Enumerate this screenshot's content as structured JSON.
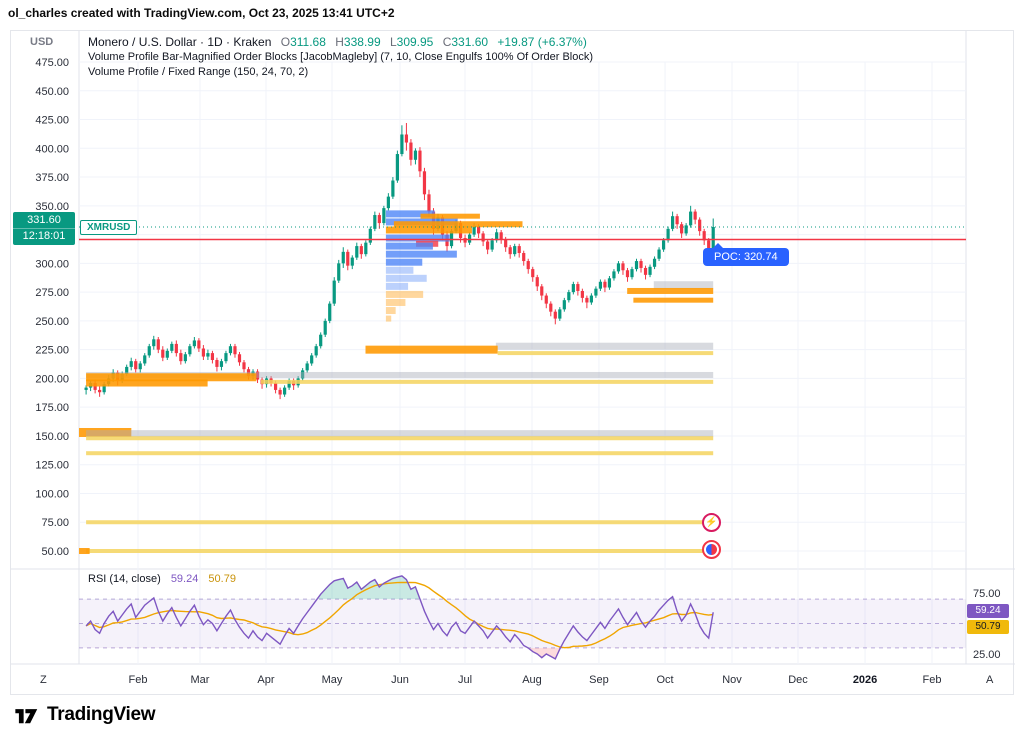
{
  "header": {
    "credit": "ol_charles created with TradingView.com, Oct 23, 2025 13:41 UTC+2"
  },
  "legend": {
    "title": "Monero / U.S. Dollar · 1D · Kraken",
    "o_label": "O",
    "o": "311.68",
    "h_label": "H",
    "h": "338.99",
    "l_label": "L",
    "l": "309.95",
    "c_label": "C",
    "c": "331.60",
    "change": "+19.87 (+6.37%)",
    "indicator1": "Volume Profile Bar-Magnified Order Blocks [JacobMagleby] (7, 10, Close Engulfs 100% Of Order Block)",
    "indicator2": "Volume Profile / Fixed Range (150, 24, 70, 2)"
  },
  "price_axis": {
    "unit": "USD",
    "current": "331.60",
    "countdown": "12:18:01",
    "symbol": "XMRUSD"
  },
  "poc": {
    "label": "POC: 320.74"
  },
  "rsi_legend": {
    "title": "RSI (14, close)",
    "value": "59.24",
    "ma": "50.79"
  },
  "time_axis": {
    "left": "Z",
    "right": "A"
  },
  "footer": {
    "brand": "TradingView"
  },
  "colors": {
    "up": "#089981",
    "down": "#f23645",
    "grid": "#f0f3fa",
    "red_line": "#f23645",
    "poc_blue": "#2962ff",
    "rsi_purple": "#7e57c2",
    "rsi_yellow": "#f0a500",
    "band": "rgba(126,87,194,0.08)",
    "blue": "rgba(79,134,247,0.8)",
    "lightblue": "rgba(79,134,247,0.38)",
    "orange": "rgba(255,152,0,0.88)",
    "lightorange": "rgba(255,183,77,0.55)",
    "yellow": "rgba(244,211,94,0.85)",
    "gray": "rgba(168,172,183,0.45)",
    "red": "rgba(242,54,69,0.8)"
  },
  "chart_data": {
    "type": "candlestick",
    "title": "Monero / U.S. Dollar · 1D · Kraken",
    "ylim": [
      50,
      475
    ],
    "price_ticks": [
      475,
      450,
      425,
      400,
      375,
      350,
      325,
      300,
      275,
      250,
      225,
      200,
      175,
      150,
      125,
      100,
      75,
      50
    ],
    "months": [
      [
        "Feb",
        0.0665
      ],
      [
        "Mar",
        0.1364
      ],
      [
        "Apr",
        0.2108
      ],
      [
        "May",
        0.2852
      ],
      [
        "Jun",
        0.3619
      ],
      [
        "Jul",
        0.4352
      ],
      [
        "Aug",
        0.5107
      ],
      [
        "Sep",
        0.5862
      ],
      [
        "Oct",
        0.6607
      ],
      [
        "Nov",
        0.7362
      ],
      [
        "Dec",
        0.8106
      ],
      [
        "2026",
        0.8862,
        1
      ],
      [
        "Feb",
        0.9617
      ]
    ],
    "poc_line": 320.74,
    "last_price": 331.6,
    "candles": [
      [
        190,
        194,
        186,
        192
      ],
      [
        192,
        198,
        189,
        196
      ],
      [
        196,
        199,
        187,
        190
      ],
      [
        190,
        193,
        184,
        188
      ],
      [
        188,
        197,
        186,
        195
      ],
      [
        195,
        203,
        193,
        200
      ],
      [
        200,
        208,
        197,
        205
      ],
      [
        205,
        207,
        194,
        198
      ],
      [
        198,
        206,
        196,
        204
      ],
      [
        204,
        212,
        202,
        210
      ],
      [
        210,
        218,
        207,
        215
      ],
      [
        215,
        217,
        205,
        208
      ],
      [
        208,
        215,
        205,
        213
      ],
      [
        213,
        222,
        211,
        220
      ],
      [
        220,
        230,
        218,
        228
      ],
      [
        228,
        237,
        225,
        234
      ],
      [
        234,
        236,
        222,
        225
      ],
      [
        225,
        228,
        215,
        218
      ],
      [
        218,
        226,
        216,
        224
      ],
      [
        224,
        232,
        222,
        230
      ],
      [
        230,
        233,
        219,
        222
      ],
      [
        222,
        225,
        212,
        215
      ],
      [
        215,
        223,
        213,
        221
      ],
      [
        221,
        230,
        219,
        228
      ],
      [
        228,
        236,
        226,
        233
      ],
      [
        233,
        235,
        223,
        226
      ],
      [
        226,
        229,
        216,
        219
      ],
      [
        219,
        225,
        216,
        222
      ],
      [
        222,
        224,
        213,
        216
      ],
      [
        216,
        218,
        206,
        210
      ],
      [
        210,
        217,
        207,
        215
      ],
      [
        215,
        224,
        213,
        222
      ],
      [
        222,
        230,
        220,
        228
      ],
      [
        228,
        230,
        218,
        221
      ],
      [
        221,
        223,
        211,
        214
      ],
      [
        214,
        216,
        205,
        208
      ],
      [
        208,
        210,
        199,
        202
      ],
      [
        202,
        208,
        199,
        206
      ],
      [
        206,
        208,
        196,
        199
      ],
      [
        199,
        201,
        191,
        195
      ],
      [
        195,
        202,
        192,
        200
      ],
      [
        200,
        202,
        193,
        196
      ],
      [
        196,
        198,
        187,
        190
      ],
      [
        190,
        192,
        182,
        186
      ],
      [
        186,
        194,
        184,
        192
      ],
      [
        192,
        200,
        190,
        198
      ],
      [
        198,
        200,
        190,
        194
      ],
      [
        194,
        202,
        192,
        200
      ],
      [
        200,
        209,
        198,
        207
      ],
      [
        207,
        215,
        205,
        213
      ],
      [
        213,
        222,
        211,
        220
      ],
      [
        220,
        230,
        218,
        228
      ],
      [
        228,
        240,
        226,
        238
      ],
      [
        238,
        252,
        236,
        250
      ],
      [
        250,
        267,
        248,
        265
      ],
      [
        265,
        288,
        263,
        285
      ],
      [
        285,
        303,
        283,
        300
      ],
      [
        300,
        314,
        296,
        310
      ],
      [
        310,
        312,
        294,
        298
      ],
      [
        298,
        307,
        295,
        305
      ],
      [
        305,
        318,
        303,
        315
      ],
      [
        315,
        317,
        304,
        308
      ],
      [
        308,
        320,
        306,
        318
      ],
      [
        318,
        332,
        316,
        330
      ],
      [
        330,
        345,
        328,
        342
      ],
      [
        342,
        344,
        330,
        335
      ],
      [
        335,
        350,
        333,
        348
      ],
      [
        348,
        361,
        346,
        358
      ],
      [
        358,
        375,
        356,
        372
      ],
      [
        372,
        398,
        370,
        395
      ],
      [
        395,
        420,
        393,
        412
      ],
      [
        412,
        422,
        398,
        405
      ],
      [
        405,
        408,
        385,
        390
      ],
      [
        390,
        400,
        386,
        398
      ],
      [
        398,
        401,
        375,
        380
      ],
      [
        380,
        383,
        355,
        360
      ],
      [
        360,
        364,
        340,
        345
      ],
      [
        345,
        348,
        325,
        330
      ],
      [
        330,
        343,
        328,
        340
      ],
      [
        340,
        342,
        320,
        325
      ],
      [
        325,
        328,
        310,
        315
      ],
      [
        315,
        330,
        313,
        328
      ],
      [
        328,
        338,
        326,
        335
      ],
      [
        335,
        337,
        318,
        322
      ],
      [
        322,
        325,
        314,
        318
      ],
      [
        318,
        327,
        316,
        325
      ],
      [
        325,
        335,
        323,
        332
      ],
      [
        332,
        334,
        322,
        326
      ],
      [
        326,
        328,
        315,
        319
      ],
      [
        319,
        321,
        308,
        312
      ],
      [
        312,
        322,
        310,
        320
      ],
      [
        320,
        330,
        318,
        327
      ],
      [
        327,
        329,
        317,
        321
      ],
      [
        321,
        323,
        310,
        314
      ],
      [
        314,
        316,
        304,
        308
      ],
      [
        308,
        317,
        306,
        315
      ],
      [
        315,
        317,
        305,
        309
      ],
      [
        309,
        311,
        298,
        302
      ],
      [
        302,
        304,
        291,
        295
      ],
      [
        295,
        297,
        284,
        288
      ],
      [
        288,
        290,
        276,
        280
      ],
      [
        280,
        282,
        268,
        272
      ],
      [
        272,
        274,
        261,
        265
      ],
      [
        265,
        267,
        254,
        258
      ],
      [
        258,
        260,
        247,
        252
      ],
      [
        252,
        262,
        250,
        260
      ],
      [
        260,
        270,
        258,
        268
      ],
      [
        268,
        277,
        266,
        275
      ],
      [
        275,
        284,
        273,
        282
      ],
      [
        282,
        284,
        272,
        276
      ],
      [
        276,
        278,
        266,
        270
      ],
      [
        270,
        272,
        261,
        266
      ],
      [
        266,
        274,
        264,
        272
      ],
      [
        272,
        280,
        270,
        278
      ],
      [
        278,
        286,
        276,
        284
      ],
      [
        284,
        286,
        275,
        279
      ],
      [
        279,
        289,
        277,
        287
      ],
      [
        287,
        295,
        285,
        293
      ],
      [
        293,
        302,
        291,
        300
      ],
      [
        300,
        302,
        290,
        294
      ],
      [
        294,
        296,
        284,
        288
      ],
      [
        288,
        297,
        286,
        295
      ],
      [
        295,
        304,
        293,
        302
      ],
      [
        302,
        304,
        292,
        296
      ],
      [
        296,
        298,
        286,
        290
      ],
      [
        290,
        299,
        288,
        297
      ],
      [
        297,
        306,
        295,
        304
      ],
      [
        304,
        314,
        302,
        312
      ],
      [
        312,
        322,
        310,
        320
      ],
      [
        320,
        332,
        318,
        330
      ],
      [
        330,
        345,
        328,
        341
      ],
      [
        341,
        343,
        330,
        334
      ],
      [
        334,
        336,
        322,
        326
      ],
      [
        326,
        335,
        324,
        333
      ],
      [
        333,
        350,
        331,
        345
      ],
      [
        345,
        347,
        334,
        338
      ],
      [
        338,
        340,
        324,
        328
      ],
      [
        328,
        330,
        316,
        320
      ],
      [
        320,
        322,
        308,
        312
      ],
      [
        312,
        339,
        310,
        331.6
      ]
    ],
    "volume_profile": [
      [
        343,
        0.346,
        0.401,
        "blue",
        7
      ],
      [
        336,
        0.346,
        0.427,
        "blue",
        7
      ],
      [
        329,
        0.346,
        0.443,
        "orange",
        7
      ],
      [
        322,
        0.346,
        0.418,
        "blue",
        7
      ],
      [
        317,
        0.38,
        0.405,
        "red",
        6
      ],
      [
        315,
        0.346,
        0.399,
        "blue",
        7
      ],
      [
        308,
        0.346,
        0.426,
        "blue",
        7
      ],
      [
        301,
        0.346,
        0.387,
        "blue",
        7
      ],
      [
        294,
        0.346,
        0.377,
        "lightblue",
        7
      ],
      [
        287,
        0.346,
        0.392,
        "lightblue",
        7
      ],
      [
        280,
        0.346,
        0.371,
        "lightblue",
        7
      ],
      [
        273,
        0.346,
        0.388,
        "lightorange",
        7
      ],
      [
        266,
        0.346,
        0.368,
        "lightorange",
        7
      ],
      [
        259,
        0.346,
        0.357,
        "lightorange",
        7
      ],
      [
        252,
        0.346,
        0.352,
        "lightorange",
        6
      ],
      [
        341,
        0.385,
        0.452,
        "orange",
        5
      ],
      [
        334,
        0.355,
        0.5,
        "orange",
        6
      ],
      [
        281,
        0.648,
        0.715,
        "gray",
        8
      ],
      [
        276,
        0.618,
        0.715,
        "orange",
        6
      ],
      [
        268,
        0.625,
        0.715,
        "orange",
        5
      ],
      [
        228,
        0.47,
        0.715,
        "gray",
        7
      ],
      [
        225,
        0.323,
        0.472,
        "orange",
        8
      ],
      [
        222,
        0.472,
        0.715,
        "yellow",
        4
      ],
      [
        203,
        0.008,
        0.715,
        "gray",
        6
      ],
      [
        201,
        0.008,
        0.2,
        "orange",
        8
      ],
      [
        197,
        0.205,
        0.715,
        "yellow",
        4
      ],
      [
        196,
        0.008,
        0.145,
        "orange",
        7
      ],
      [
        153,
        0.0,
        0.059,
        "orange",
        9
      ],
      [
        152,
        0.008,
        0.715,
        "gray",
        7
      ],
      [
        148,
        0.008,
        0.715,
        "yellow",
        4
      ],
      [
        135,
        0.008,
        0.715,
        "yellow",
        4
      ],
      [
        75,
        0.008,
        0.715,
        "yellow",
        4
      ],
      [
        50,
        0.008,
        0.715,
        "yellow",
        4
      ],
      [
        50,
        0.0,
        0.012,
        "orange",
        6
      ]
    ],
    "rsi": {
      "upper": 70,
      "mid": 50,
      "lower": 30,
      "axis_ticks": [
        75,
        25
      ],
      "value": 59.24,
      "ma_value": 50.79,
      "values": [
        48,
        52,
        45,
        42,
        50,
        56,
        60,
        52,
        57,
        62,
        66,
        55,
        60,
        65,
        68,
        71,
        60,
        52,
        58,
        63,
        55,
        48,
        54,
        60,
        65,
        56,
        49,
        53,
        50,
        44,
        50,
        56,
        61,
        53,
        47,
        42,
        38,
        44,
        39,
        36,
        42,
        39,
        36,
        33,
        40,
        46,
        42,
        48,
        54,
        59,
        64,
        69,
        74,
        78,
        82,
        85,
        86,
        87,
        79,
        81,
        84,
        78,
        81,
        84,
        86,
        80,
        83,
        85,
        87,
        88,
        89,
        86,
        78,
        80,
        70,
        60,
        52,
        45,
        50,
        44,
        40,
        47,
        51,
        44,
        42,
        47,
        52,
        48,
        44,
        38,
        43,
        48,
        44,
        39,
        35,
        41,
        37,
        32,
        30,
        27,
        25,
        22,
        25,
        23,
        21,
        29,
        36,
        42,
        48,
        43,
        39,
        36,
        41,
        46,
        51,
        46,
        52,
        57,
        62,
        55,
        49,
        54,
        59,
        52,
        47,
        52,
        56,
        61,
        65,
        69,
        72,
        60,
        52,
        57,
        66,
        58,
        48,
        42,
        38,
        59.24
      ]
    }
  }
}
